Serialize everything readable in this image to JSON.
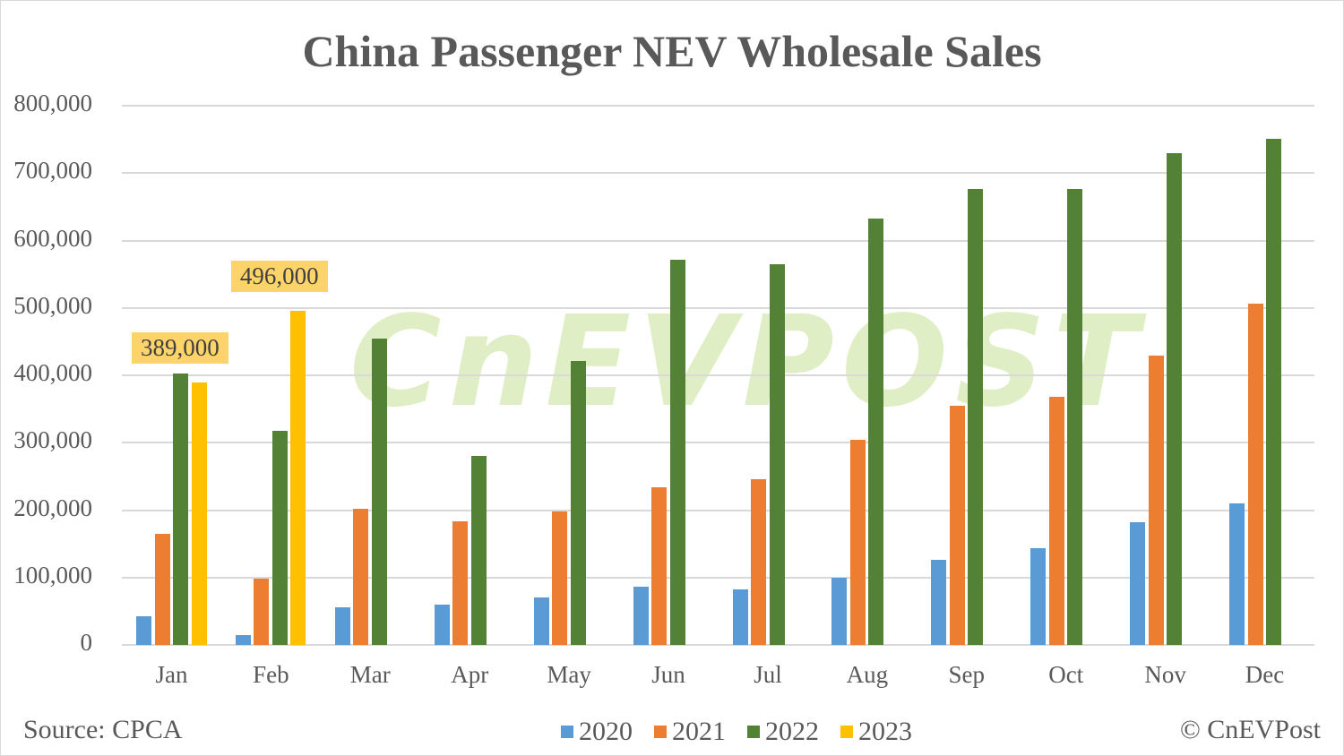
{
  "title": "China Passenger NEV Wholesale Sales",
  "source": "Source: CPCA",
  "copyright": "© CnEVPost",
  "watermark": "CnEVPOST",
  "colors": {
    "2020": "#5b9bd5",
    "2021": "#ed7d31",
    "2022": "#538135",
    "2023": "#ffc000",
    "label_bg": "#fdd46a"
  },
  "chart_data": {
    "type": "bar",
    "title": "China Passenger NEV Wholesale Sales",
    "xlabel": "",
    "ylabel": "",
    "ylim": [
      0,
      800000
    ],
    "yticks": [
      "0",
      "100,000",
      "200,000",
      "300,000",
      "400,000",
      "500,000",
      "600,000",
      "700,000",
      "800,000"
    ],
    "grid": true,
    "legend_position": "bottom",
    "categories": [
      "Jan",
      "Feb",
      "Mar",
      "Apr",
      "May",
      "Jun",
      "Jul",
      "Aug",
      "Sep",
      "Oct",
      "Nov",
      "Dec"
    ],
    "series": [
      {
        "name": "2020",
        "values": [
          43000,
          15000,
          56000,
          60000,
          71000,
          87000,
          82000,
          100000,
          126000,
          144000,
          182000,
          210000
        ]
      },
      {
        "name": "2021",
        "values": [
          165000,
          99000,
          202000,
          183000,
          198000,
          234000,
          246000,
          305000,
          355000,
          368000,
          429000,
          506000
        ]
      },
      {
        "name": "2022",
        "values": [
          403000,
          317000,
          455000,
          280000,
          421000,
          572000,
          565000,
          632000,
          676000,
          676000,
          729000,
          751000
        ]
      },
      {
        "name": "2023",
        "values": [
          389000,
          496000,
          null,
          null,
          null,
          null,
          null,
          null,
          null,
          null,
          null,
          null
        ]
      }
    ],
    "annotations": [
      {
        "category": "Jan",
        "series": "2023",
        "text": "389,000"
      },
      {
        "category": "Feb",
        "series": "2023",
        "text": "496,000"
      }
    ]
  }
}
